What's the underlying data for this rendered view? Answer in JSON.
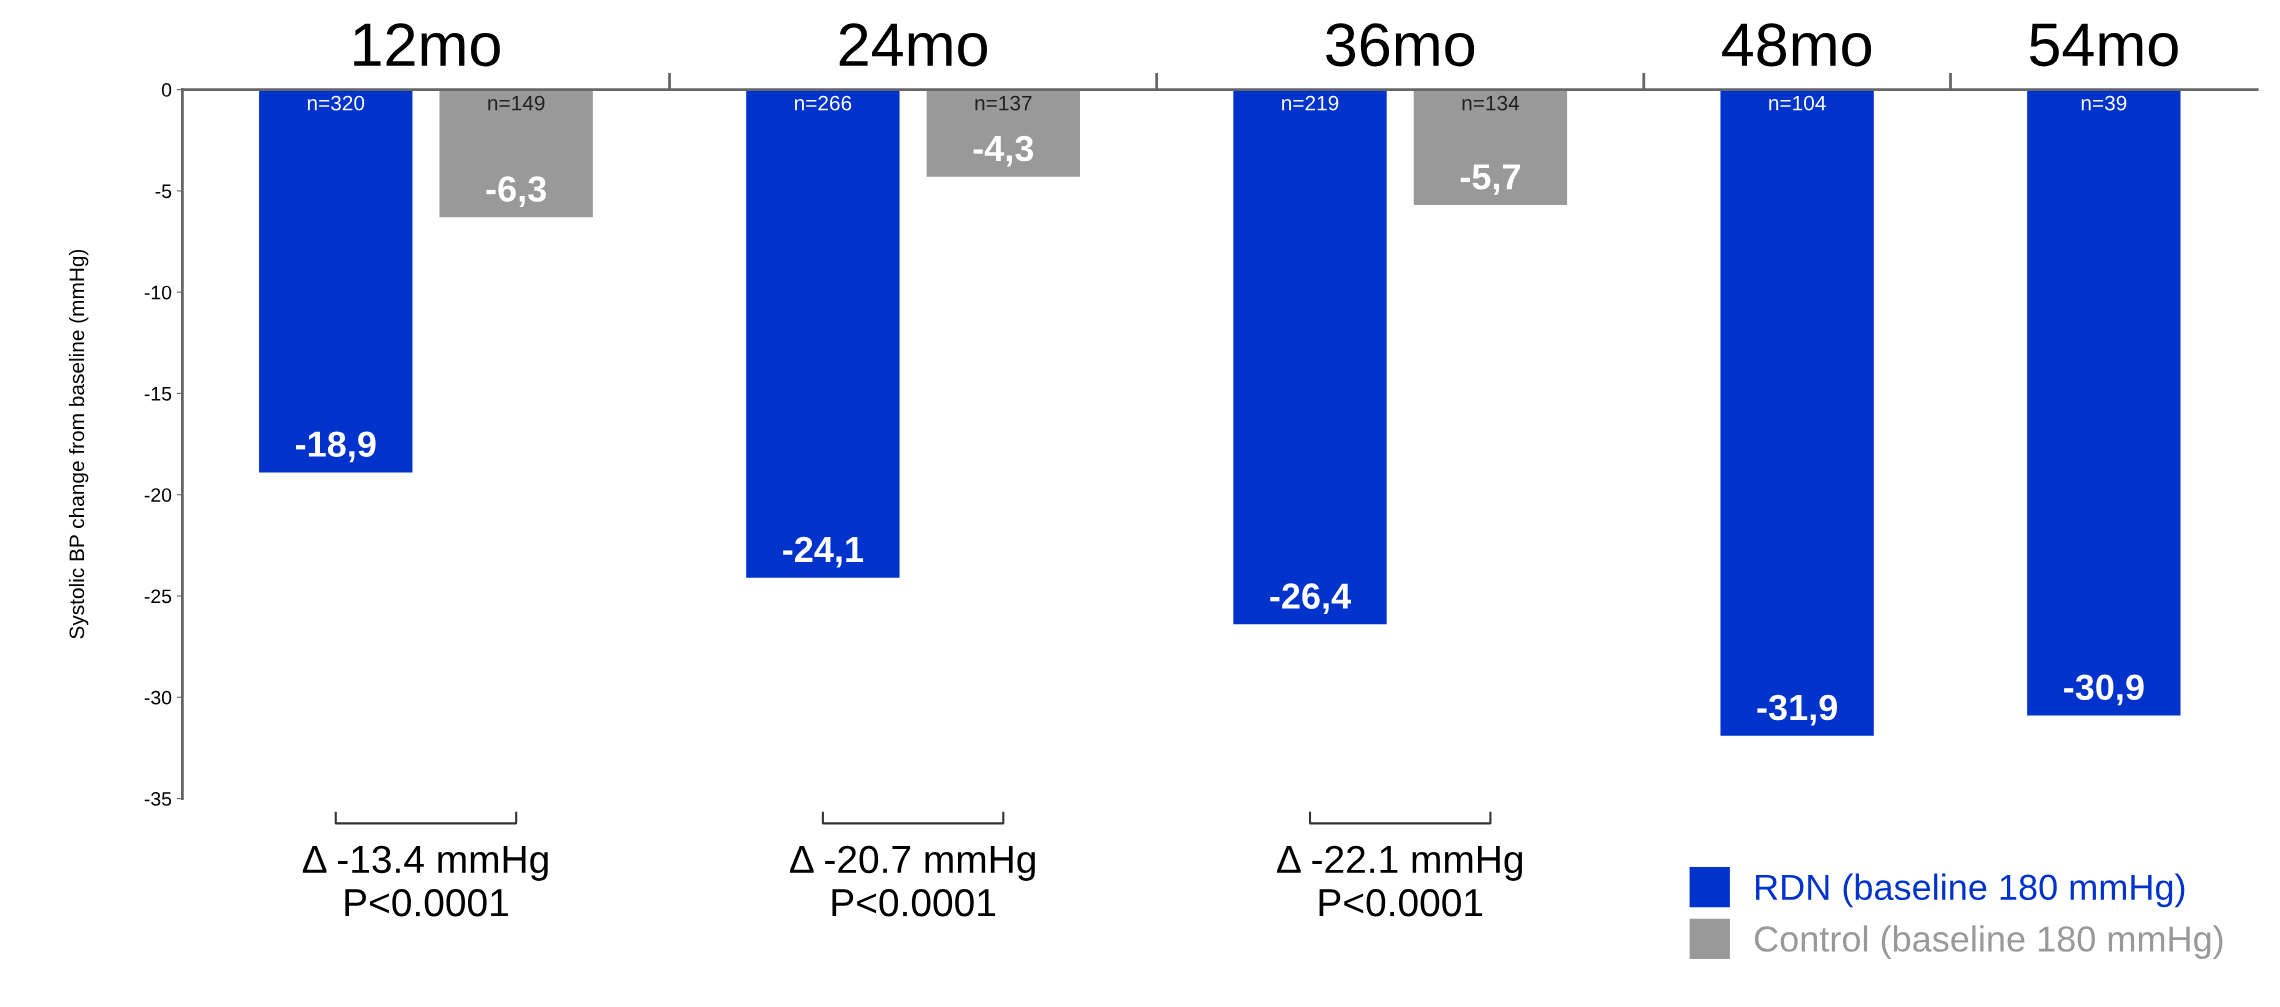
{
  "chart_data": {
    "type": "bar",
    "ylabel": "Systolic BP change from baseline (mmHg)",
    "categories": [
      "12mo",
      "24mo",
      "36mo",
      "48mo",
      "54mo"
    ],
    "series": [
      {
        "name": "RDN (baseline 180 mmHg)",
        "color": "#0033cc",
        "values": [
          -18.9,
          -24.1,
          -26.4,
          -31.9,
          -30.9
        ],
        "value_labels": [
          "-18,9",
          "-24,1",
          "-26,4",
          "-31,9",
          "-30,9"
        ]
      },
      {
        "name": "Control (baseline 180 mmHg)",
        "color": "#999999",
        "values": [
          -6.3,
          -4.3,
          -5.7,
          null,
          null
        ],
        "value_labels": [
          "-6,3",
          "-4,3",
          "-5,7",
          null,
          null
        ]
      }
    ],
    "ylim": [
      -35,
      0
    ],
    "yticks": [
      0,
      -5,
      -10,
      -15,
      -20,
      -25,
      -30,
      -35
    ],
    "legend": "bottom right",
    "grid": false,
    "annotations": [
      "n=320",
      "n=149",
      "n=266",
      "n=137",
      "n=219",
      "n=134",
      "n=104",
      "n=39",
      "Δ -13.4 mmHg\nP<0.0001",
      "Δ -20.7 mmHg\nP<0.0001",
      "Δ -22.1 mmHg\nP<0.0001"
    ]
  }
}
